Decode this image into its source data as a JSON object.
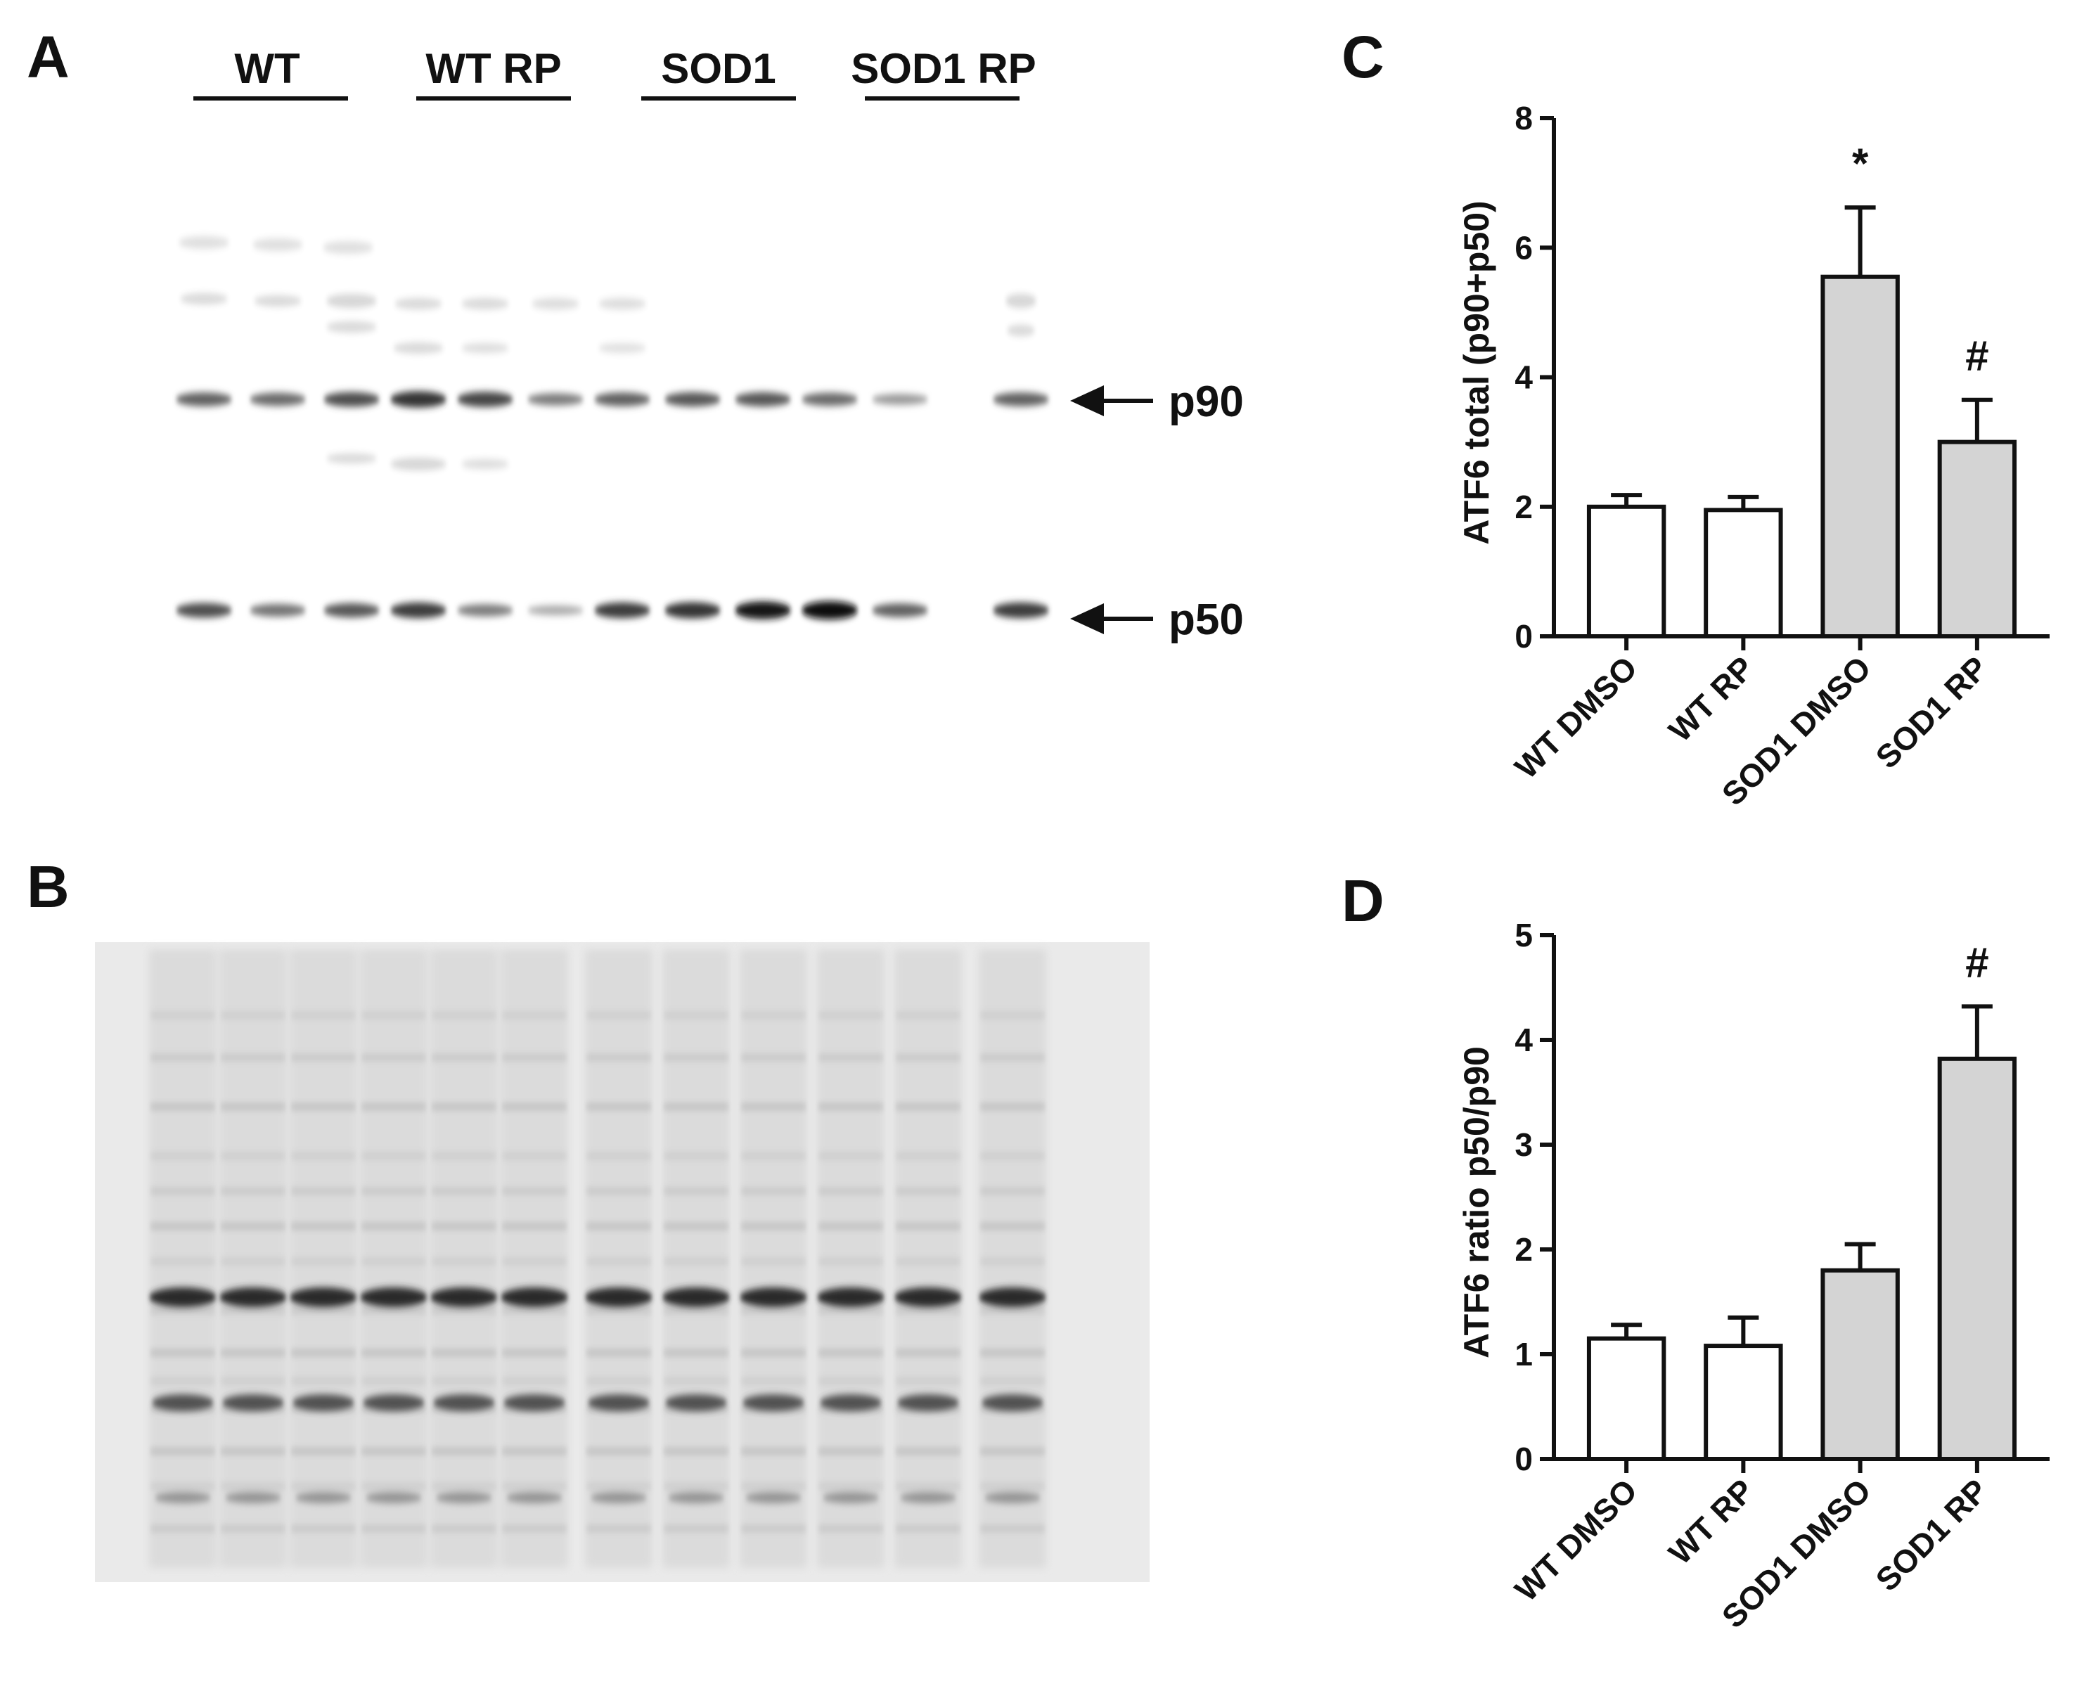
{
  "panels": {
    "a": "A",
    "b": "B",
    "c": "C",
    "d": "D"
  },
  "blot": {
    "lane_groups": [
      "WT",
      "WT RP",
      "SOD1",
      "SOD1 RP"
    ],
    "band_labels": [
      "p90",
      "p50"
    ],
    "p90_intensity": [
      0.55,
      0.5,
      0.65,
      0.8,
      0.7,
      0.4,
      0.55,
      0.6,
      0.6,
      0.5,
      0.25,
      0.55
    ],
    "p50_intensity": [
      0.65,
      0.45,
      0.6,
      0.75,
      0.4,
      0.15,
      0.75,
      0.8,
      0.95,
      1.0,
      0.55,
      0.75
    ]
  },
  "colors": {
    "wt_bar": "#ffffff",
    "sod1_bar": "#d4d4d4",
    "axis": "#111111"
  },
  "chart_data": [
    {
      "type": "bar",
      "panel": "C",
      "categories": [
        "WT DMSO",
        "WT RP",
        "SOD1 DMSO",
        "SOD1 RP"
      ],
      "values": [
        2.0,
        1.95,
        5.55,
        3.0
      ],
      "errors": [
        0.18,
        0.2,
        1.07,
        0.65
      ],
      "annotations": [
        "",
        "",
        "*",
        "#"
      ],
      "ylabel": "ATF6 total (p90+p50)",
      "ylim": [
        0,
        8
      ],
      "yticks": [
        "0",
        "2",
        "4",
        "6",
        "8"
      ]
    },
    {
      "type": "bar",
      "panel": "D",
      "categories": [
        "WT DMSO",
        "WT RP",
        "SOD1 DMSO",
        "SOD1 RP"
      ],
      "values": [
        1.15,
        1.08,
        1.8,
        3.82
      ],
      "errors": [
        0.13,
        0.27,
        0.25,
        0.5
      ],
      "annotations": [
        "",
        "",
        "",
        "#"
      ],
      "ylabel": "ATF6 ratio p50/p90",
      "ylim": [
        0,
        5
      ],
      "yticks": [
        "0",
        "1",
        "2",
        "3",
        "4",
        "5"
      ]
    }
  ]
}
